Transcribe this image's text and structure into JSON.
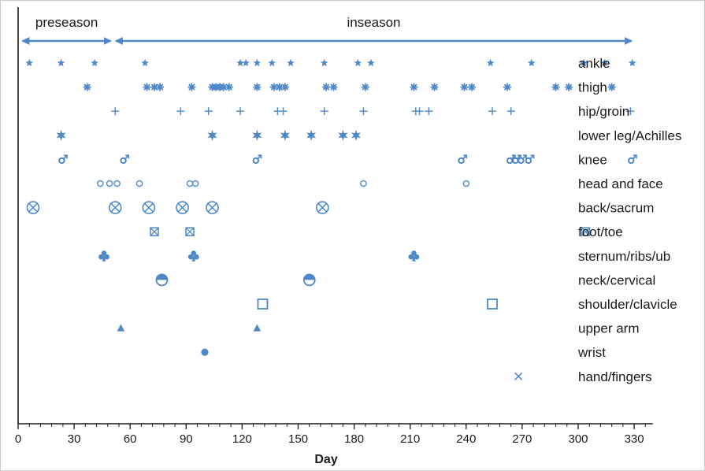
{
  "chart_data": {
    "type": "scatter",
    "xlabel": "Day",
    "xlim": [
      0,
      340
    ],
    "xticks": [
      0,
      30,
      60,
      90,
      120,
      150,
      180,
      210,
      240,
      270,
      300,
      330
    ],
    "minor_tick_step": 6,
    "grid": false,
    "color": "#4e88c7",
    "periods": [
      {
        "label": "preseason",
        "start": 1,
        "end": 51
      },
      {
        "label": "inseason",
        "start": 51,
        "end": 330
      }
    ],
    "categories": [
      {
        "label": "ankle",
        "marker": "star5",
        "x": [
          6,
          23,
          41,
          68,
          119,
          122,
          128,
          136,
          146,
          164,
          182,
          189,
          253,
          275,
          303,
          314,
          329
        ]
      },
      {
        "label": "thigh",
        "marker": "asterisk",
        "x": [
          37,
          69,
          73,
          76,
          93,
          104,
          106,
          108,
          110,
          113,
          128,
          137,
          140,
          143,
          165,
          169,
          186,
          212,
          223,
          239,
          243,
          262,
          288,
          295,
          318
        ]
      },
      {
        "label": "hip/groin",
        "marker": "plus",
        "x": [
          52,
          87,
          102,
          119,
          139,
          142,
          164,
          185,
          213,
          215,
          220,
          254,
          264,
          328
        ]
      },
      {
        "label": "lower leg/Achilles",
        "marker": "star6",
        "x": [
          23,
          104,
          128,
          143,
          157,
          174,
          181
        ]
      },
      {
        "label": "knee",
        "marker": "male",
        "x": [
          24,
          57,
          128,
          238,
          264,
          267,
          270,
          274,
          329
        ]
      },
      {
        "label": "head and face",
        "marker": "circle-open",
        "x": [
          44,
          49,
          53,
          65,
          92,
          95,
          185,
          240
        ]
      },
      {
        "label": "back/sacrum",
        "marker": "circle-x",
        "x": [
          8,
          52,
          70,
          88,
          104,
          163
        ]
      },
      {
        "label": "foot/toe",
        "marker": "square-x",
        "x": [
          73,
          92,
          304
        ]
      },
      {
        "label": "sternum/ribs/ub",
        "marker": "club",
        "x": [
          46,
          94,
          212
        ]
      },
      {
        "label": "neck/cervical",
        "marker": "half-circle",
        "x": [
          77,
          156
        ]
      },
      {
        "label": "shoulder/clavicle",
        "marker": "square-open",
        "x": [
          131,
          254
        ]
      },
      {
        "label": "upper arm",
        "marker": "triangle",
        "x": [
          55,
          128
        ]
      },
      {
        "label": "wrist",
        "marker": "circle-filled",
        "x": [
          100
        ]
      },
      {
        "label": "hand/fingers",
        "marker": "cross",
        "x": [
          268
        ]
      }
    ]
  }
}
